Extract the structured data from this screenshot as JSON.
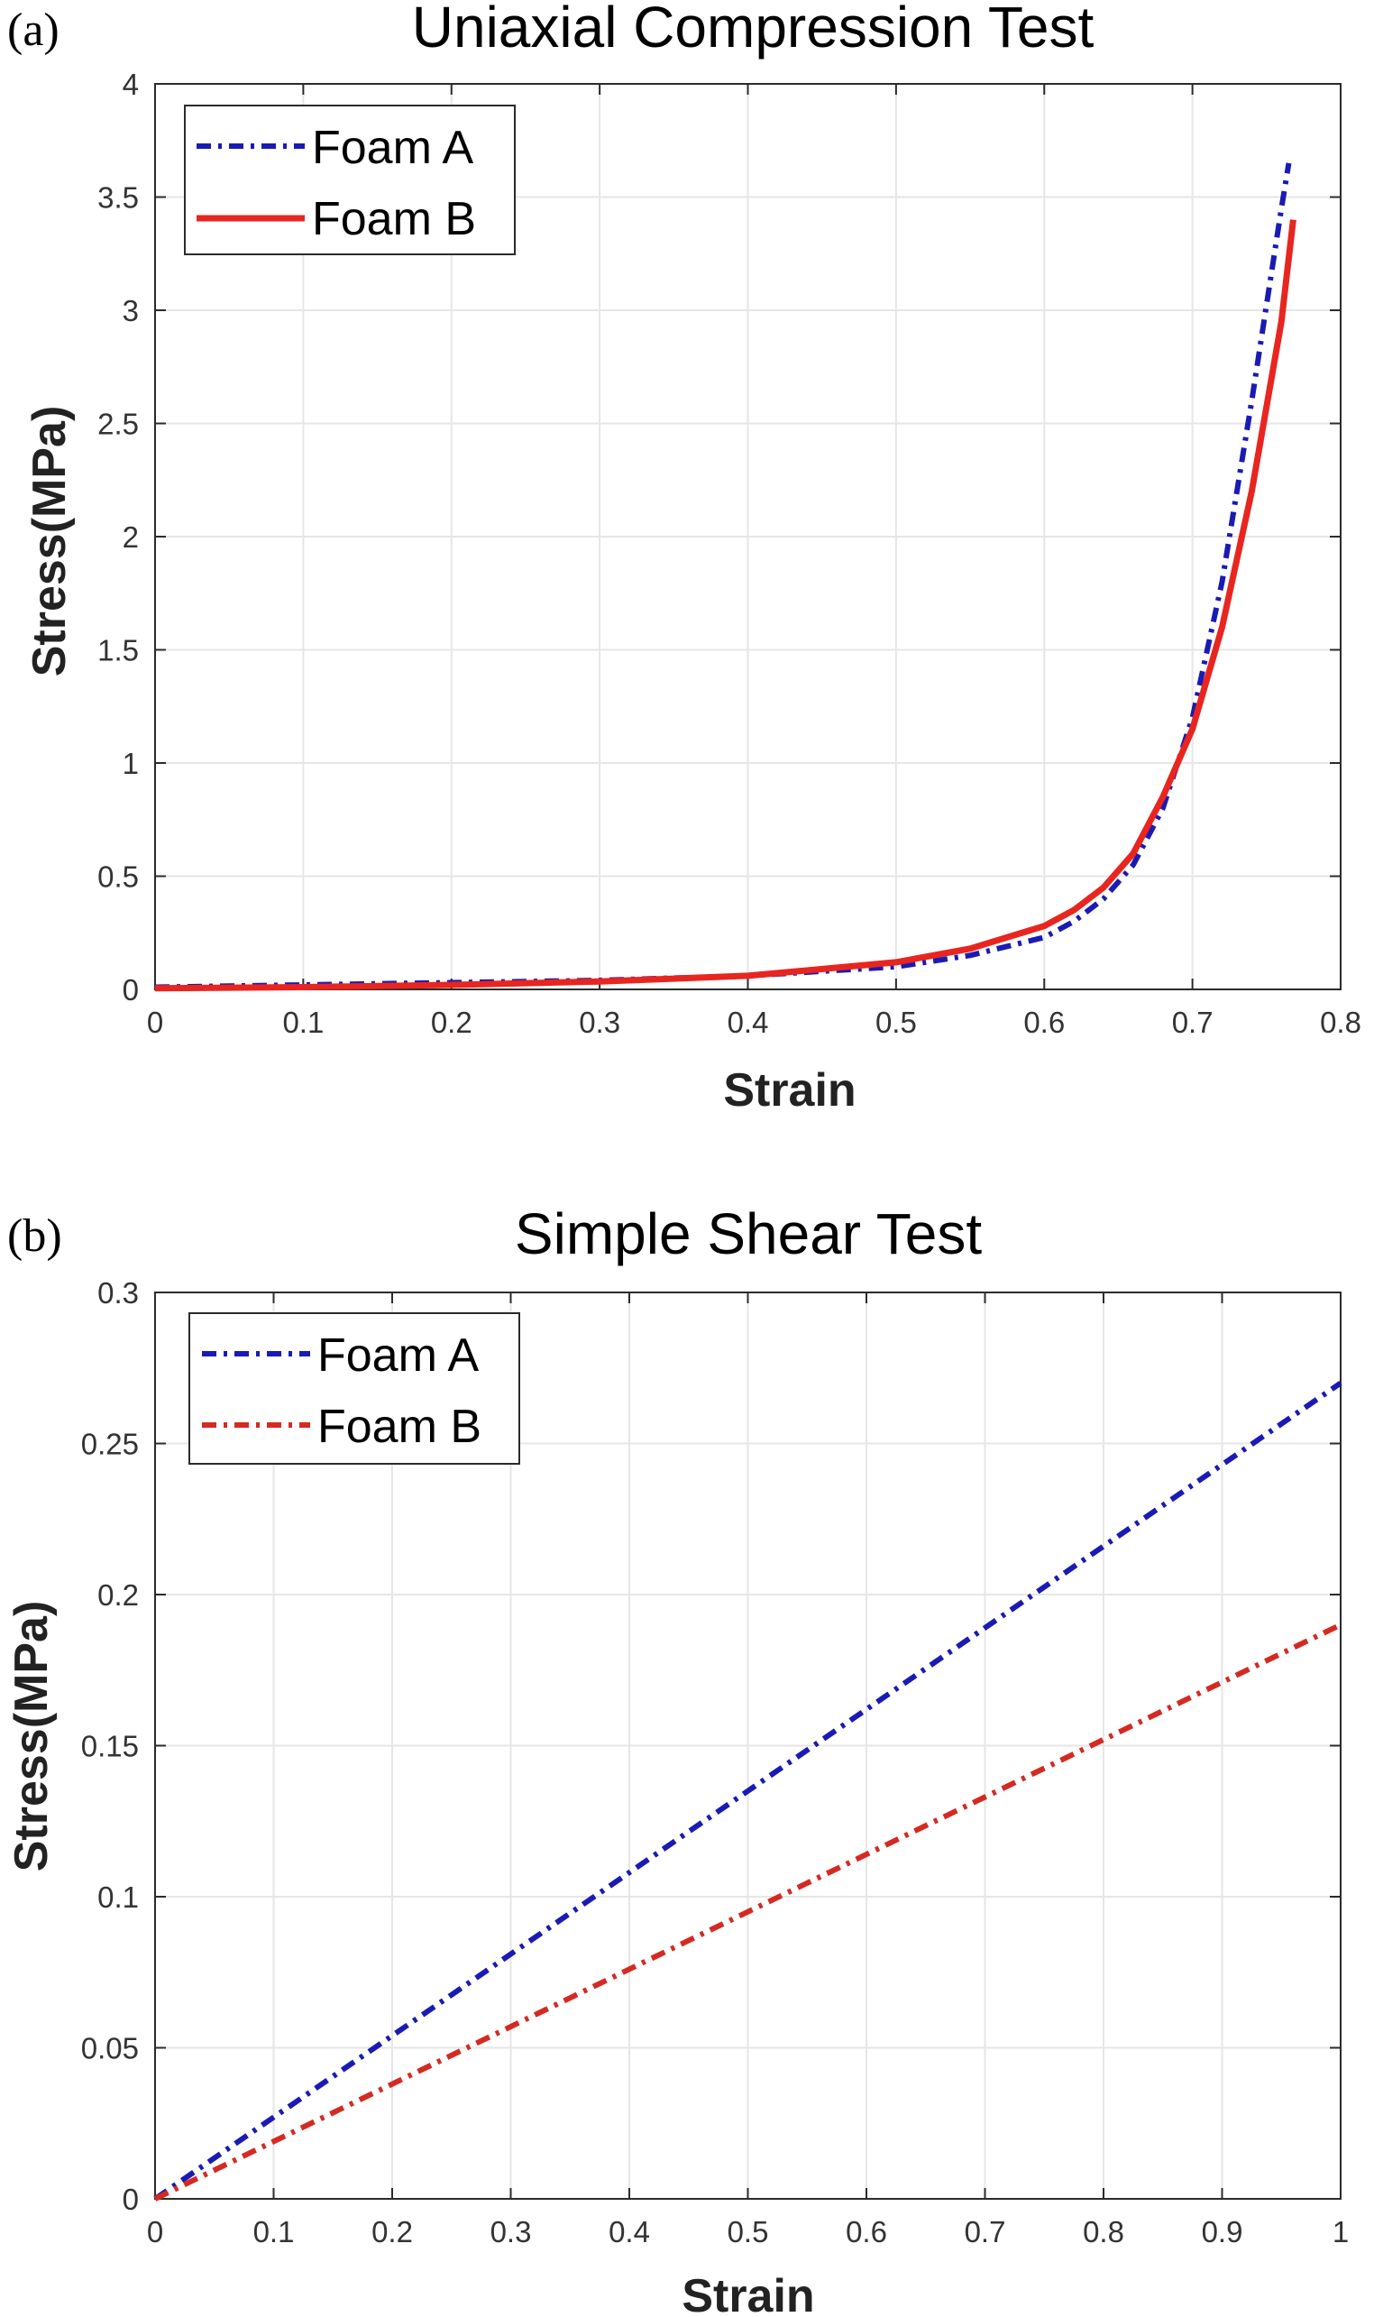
{
  "panels": {
    "a": {
      "label": "(a)"
    },
    "b": {
      "label": "(b)"
    }
  },
  "chart_data": [
    {
      "type": "line",
      "title": "Uniaxial Compression Test",
      "xlabel": "Strain",
      "ylabel": "Stress(MPa)",
      "xlim": [
        0,
        0.8
      ],
      "ylim": [
        0,
        4
      ],
      "xticks": [
        0,
        0.1,
        0.2,
        0.3,
        0.4,
        0.5,
        0.6,
        0.7,
        0.8
      ],
      "xtick_labels": [
        "0",
        "0.1",
        "0.2",
        "0.3",
        "0.4",
        "0.5",
        "0.6",
        "0.7",
        "0.8"
      ],
      "yticks": [
        0,
        0.5,
        1,
        1.5,
        2,
        2.5,
        3,
        3.5,
        4
      ],
      "ytick_labels": [
        "0",
        "0.5",
        "1",
        "1.5",
        "2",
        "2.5",
        "3",
        "3.5",
        "4"
      ],
      "grid": true,
      "legend_position": "top-left",
      "series": [
        {
          "name": "Foam A",
          "color": "#1a1ab4",
          "style": "dash-dot",
          "x": [
            0,
            0.1,
            0.2,
            0.3,
            0.4,
            0.5,
            0.55,
            0.6,
            0.62,
            0.64,
            0.66,
            0.68,
            0.7,
            0.72,
            0.74,
            0.76,
            0.765
          ],
          "y": [
            0.01,
            0.02,
            0.03,
            0.04,
            0.06,
            0.1,
            0.15,
            0.23,
            0.3,
            0.4,
            0.55,
            0.8,
            1.2,
            1.8,
            2.6,
            3.45,
            3.65
          ]
        },
        {
          "name": "Foam B",
          "color": "#e8251f",
          "style": "solid",
          "x": [
            0,
            0.1,
            0.2,
            0.3,
            0.4,
            0.5,
            0.55,
            0.6,
            0.62,
            0.64,
            0.66,
            0.68,
            0.7,
            0.72,
            0.74,
            0.76,
            0.768
          ],
          "y": [
            0.005,
            0.01,
            0.02,
            0.035,
            0.06,
            0.12,
            0.18,
            0.28,
            0.35,
            0.45,
            0.6,
            0.85,
            1.15,
            1.6,
            2.2,
            2.95,
            3.4
          ]
        }
      ]
    },
    {
      "type": "line",
      "title": "Simple Shear Test",
      "xlabel": "Strain",
      "ylabel": "Stress(MPa)",
      "xlim": [
        0,
        1
      ],
      "ylim": [
        0,
        0.3
      ],
      "xticks": [
        0,
        0.1,
        0.2,
        0.3,
        0.4,
        0.5,
        0.6,
        0.7,
        0.8,
        0.9,
        1
      ],
      "xtick_labels": [
        "0",
        "0.1",
        "0.2",
        "0.3",
        "0.4",
        "0.5",
        "0.6",
        "0.7",
        "0.8",
        "0.9",
        "1"
      ],
      "yticks": [
        0,
        0.05,
        0.1,
        0.15,
        0.2,
        0.25,
        0.3
      ],
      "ytick_labels": [
        "0",
        "0.05",
        "0.1",
        "0.15",
        "0.2",
        "0.25",
        "0.3"
      ],
      "grid": true,
      "legend_position": "top-left",
      "series": [
        {
          "name": "Foam A",
          "color": "#1a1ab4",
          "style": "dash-dot",
          "x": [
            0,
            1
          ],
          "y": [
            0,
            0.27
          ]
        },
        {
          "name": "Foam B",
          "color": "#d42a22",
          "style": "dash-dot",
          "x": [
            0,
            1
          ],
          "y": [
            0,
            0.19
          ]
        }
      ]
    }
  ]
}
